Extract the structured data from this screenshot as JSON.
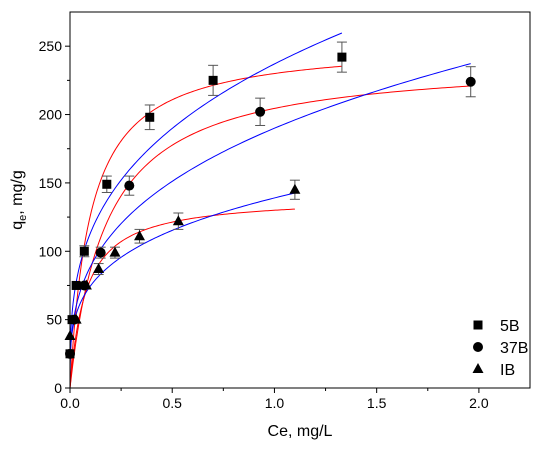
{
  "chart_data": {
    "type": "scatter",
    "xlabel": "Ce, mg/L",
    "ylabel_main": "q",
    "ylabel_sub": "e",
    "ylabel_rest": ", mg/g",
    "xlim": [
      0,
      2.25
    ],
    "ylim": [
      0,
      275
    ],
    "x_ticks": [
      "0.0",
      "0.5",
      "1.0",
      "1.5",
      "2.0"
    ],
    "y_ticks": [
      "0",
      "50",
      "100",
      "150",
      "200",
      "250"
    ],
    "legend_position": "bottom-right",
    "colors": {
      "langmuir_fit": "#ff0000",
      "freundlich_fit": "#0000ff",
      "markers": "#000000"
    },
    "series": [
      {
        "name": "5B",
        "marker": "square",
        "points": [
          {
            "x": 0.0,
            "y": 25,
            "err": 0
          },
          {
            "x": 0.01,
            "y": 50,
            "err": 0
          },
          {
            "x": 0.03,
            "y": 75,
            "err": 0
          },
          {
            "x": 0.07,
            "y": 100,
            "err": 4
          },
          {
            "x": 0.18,
            "y": 149,
            "err": 6
          },
          {
            "x": 0.39,
            "y": 198,
            "err": 9
          },
          {
            "x": 0.7,
            "y": 225,
            "err": 11
          },
          {
            "x": 1.33,
            "y": 242,
            "err": 11
          }
        ],
        "langmuir": {
          "qmax": 253,
          "kl": 10.0,
          "xmax": 1.33
        },
        "freundlich": {
          "kf": 237,
          "n": 0.32,
          "xmax": 1.33
        }
      },
      {
        "name": "37B",
        "marker": "circle",
        "points": [
          {
            "x": 0.0,
            "y": 25,
            "err": 0
          },
          {
            "x": 0.02,
            "y": 50,
            "err": 0
          },
          {
            "x": 0.07,
            "y": 75,
            "err": 0
          },
          {
            "x": 0.15,
            "y": 99,
            "err": 4
          },
          {
            "x": 0.29,
            "y": 148,
            "err": 7
          },
          {
            "x": 0.93,
            "y": 202,
            "err": 10
          },
          {
            "x": 1.96,
            "y": 224,
            "err": 11
          }
        ],
        "langmuir": {
          "qmax": 241,
          "kl": 5.6,
          "xmax": 1.96
        },
        "freundlich": {
          "kf": 190,
          "n": 0.33,
          "xmax": 1.96
        }
      },
      {
        "name": "IB",
        "marker": "triangle",
        "points": [
          {
            "x": 0.0,
            "y": 38,
            "err": 0
          },
          {
            "x": 0.03,
            "y": 50,
            "err": 0
          },
          {
            "x": 0.08,
            "y": 75,
            "err": 0
          },
          {
            "x": 0.14,
            "y": 87,
            "err": 4
          },
          {
            "x": 0.22,
            "y": 99,
            "err": 4
          },
          {
            "x": 0.34,
            "y": 111,
            "err": 5
          },
          {
            "x": 0.53,
            "y": 122,
            "err": 6
          },
          {
            "x": 1.1,
            "y": 145,
            "err": 7
          }
        ],
        "langmuir": {
          "qmax": 140,
          "kl": 13.0,
          "xmax": 1.1
        },
        "freundlich": {
          "kf": 139,
          "n": 0.27,
          "xmax": 1.1
        }
      }
    ]
  }
}
